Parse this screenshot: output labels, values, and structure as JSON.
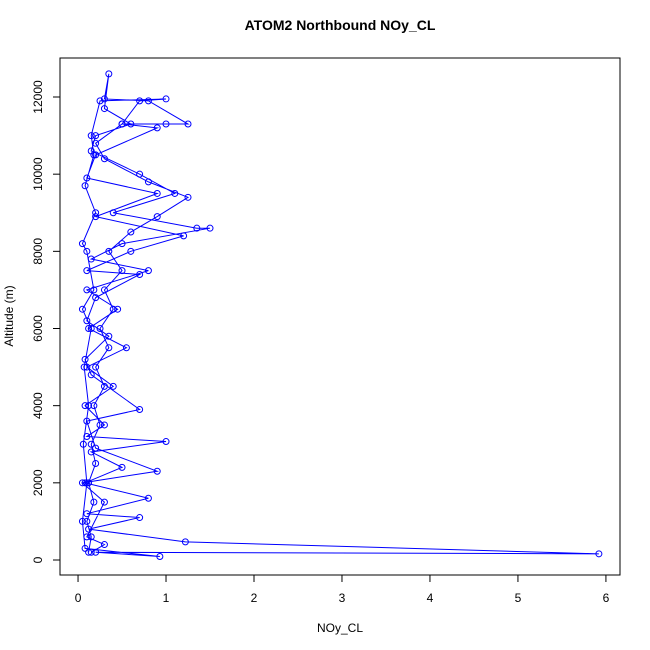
{
  "chart_data": {
    "type": "line",
    "title": "ATOM2 Northbound NOy_CL",
    "xlabel": "NOy_CL",
    "ylabel": "Altitude (m)",
    "color": "#0000ff",
    "xlim": [
      -0.205,
      6.16
    ],
    "ylim": [
      -389,
      13011
    ],
    "xticks": [
      0,
      1,
      2,
      3,
      4,
      5,
      6
    ],
    "yticks": [
      0,
      2000,
      4000,
      6000,
      8000,
      10000,
      12000
    ],
    "x": [
      0.12,
      0.15,
      0.1,
      0.18,
      0.12,
      0.2,
      0.15,
      0.25,
      0.18,
      0.3,
      0.2,
      0.35,
      0.25,
      0.4,
      0.3,
      0.5,
      0.35,
      0.6,
      0.9,
      1.25,
      0.8,
      0.3,
      0.2,
      0.5,
      1.0,
      1.25,
      0.8,
      0.3,
      0.35,
      0.3,
      0.6,
      0.2,
      0.15,
      0.7,
      1.1,
      0.4,
      1.35,
      1.5,
      0.5,
      0.15,
      0.8,
      0.1,
      0.45,
      0.12,
      0.55,
      0.1,
      0.4,
      0.08,
      0.3,
      0.1,
      1.0,
      0.15,
      0.5,
      0.08,
      0.8,
      0.1,
      0.7,
      0.12,
      1.22,
      5.92,
      0.2,
      0.93,
      0.08,
      0.05,
      0.1,
      0.06,
      0.12,
      0.07,
      0.15,
      0.05,
      0.18,
      0.1,
      0.05,
      0.2,
      0.08,
      0.18,
      0.15,
      0.25,
      1.0,
      0.7,
      0.5,
      0.9,
      0.2,
      0.1,
      0.9,
      0.2,
      1.2,
      0.6,
      0.1,
      0.7,
      0.2,
      0.1,
      0.35,
      0.08,
      0.15,
      0.7,
      0.1,
      0.2,
      0.9,
      0.05,
      0.3,
      0.1,
      0.3,
      0.15
    ],
    "values": [
      200,
      600,
      1000,
      1500,
      2000,
      2500,
      3000,
      3500,
      4000,
      4500,
      5000,
      5500,
      6000,
      6500,
      7000,
      7500,
      8000,
      8500,
      8900,
      9400,
      9800,
      10400,
      10800,
      11300,
      11300,
      11300,
      11900,
      11950,
      12600,
      11700,
      11300,
      11000,
      10600,
      10000,
      9500,
      9000,
      8600,
      8600,
      8200,
      7800,
      7500,
      7000,
      6500,
      6000,
      5500,
      5000,
      4500,
      4000,
      3500,
      3200,
      3070,
      2800,
      2400,
      2000,
      1600,
      1200,
      1100,
      800,
      470,
      160,
      200,
      90,
      300,
      1000,
      2000,
      3000,
      4000,
      5000,
      6000,
      6500,
      7000,
      8000,
      8200,
      9000,
      9700,
      10500,
      11000,
      11900,
      11950,
      11900,
      11300,
      11200,
      10500,
      9900,
      9500,
      8900,
      8400,
      8000,
      7500,
      7400,
      6800,
      6200,
      5800,
      5200,
      4800,
      3900,
      3600,
      2900,
      2300,
      2000,
      1500,
      600,
      400,
      200
    ]
  }
}
